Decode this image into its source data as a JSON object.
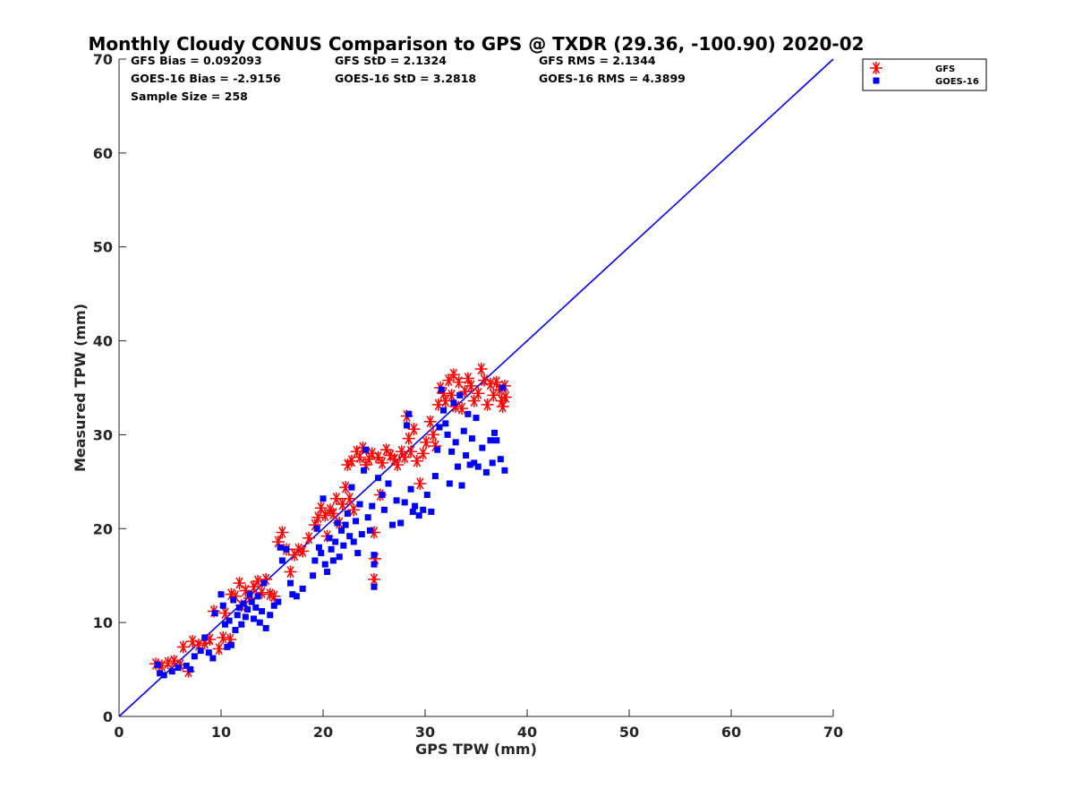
{
  "chart_data": {
    "type": "scatter",
    "title": "Monthly Cloudy CONUS Comparison to GPS @ TXDR (29.36, -100.90) 2020-02",
    "xlabel": "GPS TPW (mm)",
    "ylabel": "Measured TPW (mm)",
    "xlim": [
      0,
      70
    ],
    "ylim": [
      0,
      70
    ],
    "xticks": [
      "0",
      "10",
      "20",
      "30",
      "40",
      "50",
      "60",
      "70"
    ],
    "yticks": [
      "0",
      "10",
      "20",
      "30",
      "40",
      "50",
      "60",
      "70"
    ],
    "grid": false,
    "legend_position": "outside-top-right",
    "reference_line": {
      "x": [
        0,
        70
      ],
      "y": [
        0,
        70
      ],
      "color": "#0000ff"
    },
    "stats": {
      "gfs_bias": "GFS Bias = 0.092093",
      "goes_bias": "GOES-16 Bias = -2.9156",
      "sample_size": "Sample Size = 258",
      "gfs_std": "GFS StD = 2.1324",
      "goes_std": "GOES-16 StD = 3.2818",
      "gfs_rms": "GFS RMS = 2.1344",
      "goes_rms": "GOES-16 RMS = 4.3899"
    },
    "series": [
      {
        "name": "GFS",
        "marker": "asterisk",
        "color": "#ff0000",
        "points": [
          [
            3.6,
            5.6
          ],
          [
            4.2,
            5.4
          ],
          [
            4.8,
            5.7
          ],
          [
            5.4,
            5.9
          ],
          [
            6.0,
            5.5
          ],
          [
            6.3,
            7.4
          ],
          [
            6.8,
            4.8
          ],
          [
            7.2,
            8.0
          ],
          [
            7.8,
            7.6
          ],
          [
            8.4,
            7.8
          ],
          [
            8.9,
            8.2
          ],
          [
            9.3,
            11.2
          ],
          [
            9.8,
            7.2
          ],
          [
            10.2,
            8.4
          ],
          [
            10.4,
            11.0
          ],
          [
            10.9,
            8.2
          ],
          [
            11.0,
            13.0
          ],
          [
            11.4,
            12.8
          ],
          [
            11.8,
            14.2
          ],
          [
            12.0,
            11.8
          ],
          [
            12.4,
            13.4
          ],
          [
            12.8,
            12.6
          ],
          [
            13.2,
            13.8
          ],
          [
            13.6,
            14.4
          ],
          [
            14.0,
            13.2
          ],
          [
            14.4,
            14.6
          ],
          [
            14.8,
            13.0
          ],
          [
            15.2,
            12.8
          ],
          [
            15.6,
            18.6
          ],
          [
            16.0,
            19.6
          ],
          [
            16.4,
            17.8
          ],
          [
            16.8,
            15.4
          ],
          [
            17.2,
            17.2
          ],
          [
            17.6,
            17.8
          ],
          [
            18.0,
            17.6
          ],
          [
            18.6,
            19.0
          ],
          [
            19.2,
            20.4
          ],
          [
            19.5,
            21.2
          ],
          [
            19.8,
            22.2
          ],
          [
            20.2,
            21.4
          ],
          [
            20.4,
            19.2
          ],
          [
            20.7,
            22.0
          ],
          [
            21.0,
            21.6
          ],
          [
            21.3,
            23.2
          ],
          [
            21.6,
            20.6
          ],
          [
            21.9,
            22.6
          ],
          [
            22.2,
            24.4
          ],
          [
            22.4,
            26.8
          ],
          [
            22.6,
            23.2
          ],
          [
            22.8,
            27.2
          ],
          [
            23.0,
            22.0
          ],
          [
            23.3,
            28.2
          ],
          [
            23.6,
            27.6
          ],
          [
            23.9,
            28.6
          ],
          [
            24.2,
            26.8
          ],
          [
            24.5,
            27.4
          ],
          [
            24.8,
            28.0
          ],
          [
            25.0,
            19.6
          ],
          [
            25.1,
            16.8
          ],
          [
            25.0,
            14.6
          ],
          [
            25.4,
            27.6
          ],
          [
            25.6,
            23.6
          ],
          [
            25.8,
            27.0
          ],
          [
            26.2,
            28.4
          ],
          [
            26.6,
            27.8
          ],
          [
            27.0,
            27.4
          ],
          [
            27.3,
            26.8
          ],
          [
            27.7,
            28.2
          ],
          [
            28.0,
            27.6
          ],
          [
            28.4,
            29.6
          ],
          [
            28.2,
            32.0
          ],
          [
            28.6,
            28.2
          ],
          [
            28.9,
            30.6
          ],
          [
            29.2,
            27.2
          ],
          [
            29.5,
            24.8
          ],
          [
            29.8,
            28.0
          ],
          [
            30.1,
            29.2
          ],
          [
            30.5,
            31.4
          ],
          [
            30.8,
            30.0
          ],
          [
            31.0,
            28.8
          ],
          [
            31.3,
            33.2
          ],
          [
            31.5,
            35.0
          ],
          [
            31.8,
            34.4
          ],
          [
            32.0,
            33.6
          ],
          [
            32.3,
            35.8
          ],
          [
            32.6,
            34.2
          ],
          [
            32.8,
            36.4
          ],
          [
            33.0,
            33.0
          ],
          [
            33.3,
            35.6
          ],
          [
            33.6,
            32.8
          ],
          [
            33.9,
            34.6
          ],
          [
            34.2,
            36.0
          ],
          [
            34.5,
            35.2
          ],
          [
            34.8,
            33.6
          ],
          [
            35.2,
            34.4
          ],
          [
            35.5,
            37.0
          ],
          [
            35.8,
            35.8
          ],
          [
            36.1,
            33.2
          ],
          [
            36.4,
            35.4
          ],
          [
            36.7,
            34.2
          ],
          [
            37.0,
            35.6
          ],
          [
            37.3,
            34.8
          ],
          [
            37.5,
            33.6
          ],
          [
            37.8,
            35.2
          ],
          [
            37.9,
            34.0
          ],
          [
            37.6,
            33.0
          ]
        ]
      },
      {
        "name": "GOES-16",
        "marker": "square",
        "color": "#0000ff",
        "points": [
          [
            3.8,
            5.5
          ],
          [
            4.0,
            4.6
          ],
          [
            4.4,
            4.4
          ],
          [
            5.2,
            4.8
          ],
          [
            5.8,
            5.2
          ],
          [
            6.6,
            5.4
          ],
          [
            7.0,
            5.0
          ],
          [
            7.4,
            6.4
          ],
          [
            8.0,
            7.0
          ],
          [
            8.4,
            8.4
          ],
          [
            8.8,
            6.8
          ],
          [
            9.2,
            6.2
          ],
          [
            9.4,
            11.0
          ],
          [
            10.0,
            13.0
          ],
          [
            10.2,
            11.8
          ],
          [
            10.4,
            9.8
          ],
          [
            10.6,
            7.4
          ],
          [
            10.8,
            10.2
          ],
          [
            11.0,
            7.6
          ],
          [
            11.2,
            12.4
          ],
          [
            11.4,
            9.2
          ],
          [
            11.6,
            10.8
          ],
          [
            11.8,
            11.6
          ],
          [
            12.0,
            9.8
          ],
          [
            12.2,
            12.0
          ],
          [
            12.4,
            10.6
          ],
          [
            12.6,
            11.4
          ],
          [
            12.8,
            13.0
          ],
          [
            13.0,
            12.2
          ],
          [
            13.2,
            10.4
          ],
          [
            13.4,
            11.6
          ],
          [
            13.6,
            12.8
          ],
          [
            13.8,
            10.0
          ],
          [
            14.0,
            11.2
          ],
          [
            14.2,
            14.2
          ],
          [
            14.4,
            9.4
          ],
          [
            14.8,
            10.8
          ],
          [
            15.2,
            11.8
          ],
          [
            15.6,
            12.2
          ],
          [
            15.8,
            18.0
          ],
          [
            16.0,
            16.6
          ],
          [
            16.4,
            17.8
          ],
          [
            16.8,
            14.2
          ],
          [
            17.0,
            13.0
          ],
          [
            17.4,
            12.8
          ],
          [
            18.0,
            13.6
          ],
          [
            19.0,
            15.0
          ],
          [
            19.2,
            16.6
          ],
          [
            19.4,
            20.0
          ],
          [
            19.6,
            18.0
          ],
          [
            19.8,
            17.4
          ],
          [
            20.0,
            23.2
          ],
          [
            20.2,
            16.2
          ],
          [
            20.4,
            15.4
          ],
          [
            20.6,
            19.0
          ],
          [
            20.8,
            17.8
          ],
          [
            21.0,
            16.6
          ],
          [
            21.2,
            18.6
          ],
          [
            21.4,
            20.6
          ],
          [
            21.6,
            17.0
          ],
          [
            21.8,
            19.8
          ],
          [
            22.0,
            18.2
          ],
          [
            22.2,
            20.4
          ],
          [
            22.4,
            21.6
          ],
          [
            22.6,
            19.2
          ],
          [
            22.8,
            24.4
          ],
          [
            23.0,
            18.6
          ],
          [
            23.2,
            20.8
          ],
          [
            23.4,
            17.4
          ],
          [
            23.6,
            22.6
          ],
          [
            23.8,
            19.4
          ],
          [
            24.0,
            26.2
          ],
          [
            24.2,
            28.4
          ],
          [
            24.4,
            21.2
          ],
          [
            24.6,
            19.8
          ],
          [
            24.8,
            22.4
          ],
          [
            25.0,
            17.2
          ],
          [
            25.0,
            16.2
          ],
          [
            25.0,
            13.8
          ],
          [
            25.4,
            25.4
          ],
          [
            25.8,
            23.6
          ],
          [
            26.0,
            22.0
          ],
          [
            26.4,
            24.8
          ],
          [
            26.8,
            20.4
          ],
          [
            27.2,
            23.0
          ],
          [
            27.6,
            20.6
          ],
          [
            28.0,
            22.8
          ],
          [
            28.2,
            31.0
          ],
          [
            28.4,
            32.2
          ],
          [
            28.6,
            24.2
          ],
          [
            28.8,
            21.8
          ],
          [
            29.0,
            22.4
          ],
          [
            29.4,
            21.4
          ],
          [
            29.8,
            22.0
          ],
          [
            30.2,
            23.6
          ],
          [
            30.6,
            21.8
          ],
          [
            31.0,
            25.6
          ],
          [
            31.2,
            28.4
          ],
          [
            31.4,
            30.8
          ],
          [
            31.6,
            34.8
          ],
          [
            31.8,
            32.6
          ],
          [
            32.0,
            31.2
          ],
          [
            32.2,
            30.0
          ],
          [
            32.4,
            24.8
          ],
          [
            32.6,
            28.2
          ],
          [
            32.8,
            33.4
          ],
          [
            33.0,
            29.2
          ],
          [
            33.2,
            26.6
          ],
          [
            33.4,
            34.2
          ],
          [
            33.6,
            24.6
          ],
          [
            33.8,
            30.4
          ],
          [
            34.0,
            27.8
          ],
          [
            34.2,
            32.2
          ],
          [
            34.4,
            26.8
          ],
          [
            34.6,
            29.6
          ],
          [
            34.8,
            27.0
          ],
          [
            35.0,
            31.8
          ],
          [
            35.2,
            26.6
          ],
          [
            35.6,
            28.6
          ],
          [
            36.0,
            26.0
          ],
          [
            36.4,
            29.4
          ],
          [
            36.6,
            27.0
          ],
          [
            36.8,
            30.2
          ],
          [
            37.0,
            29.4
          ],
          [
            37.4,
            27.4
          ],
          [
            37.6,
            35.0
          ],
          [
            37.8,
            26.2
          ]
        ]
      }
    ]
  }
}
